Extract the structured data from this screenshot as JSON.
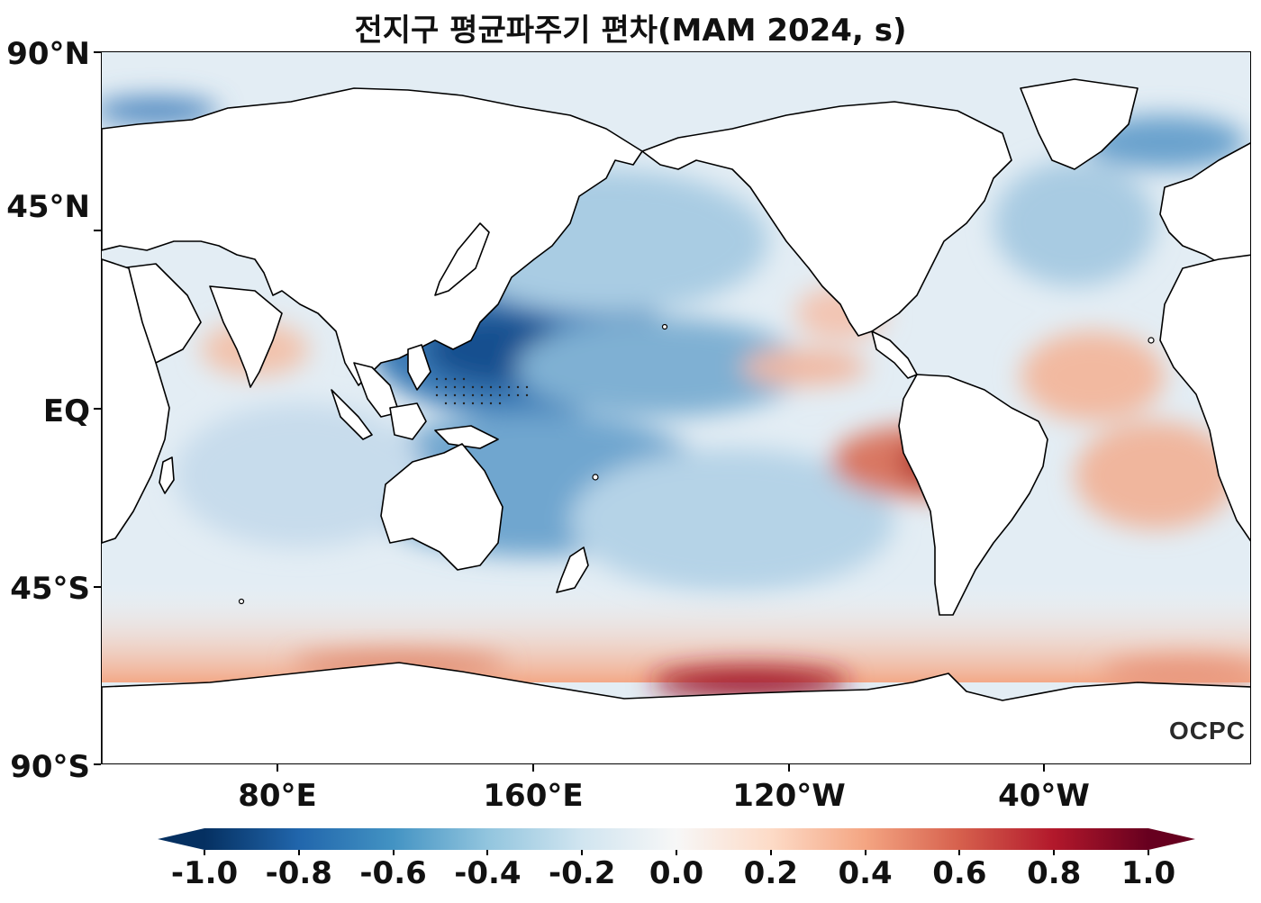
{
  "title": "전지구 평균파주기 편차(MAM 2024, s)",
  "y_axis_labels": [
    "90°N",
    "45°N",
    "EQ",
    "45°S",
    "90°S"
  ],
  "x_axis_labels": [
    "80°E",
    "160°E",
    "120°W",
    "40°W"
  ],
  "colorbar": {
    "colormap": "RdBu_r",
    "min": -1.0,
    "max": 1.0,
    "extend": "both",
    "tick_labels": [
      "-1.0",
      "-0.8",
      "-0.6",
      "-0.4",
      "-0.2",
      "0.0",
      "0.2",
      "0.4",
      "0.6",
      "0.8",
      "1.0"
    ]
  },
  "logo_text": "OCPC",
  "colors": {
    "strong_negative": "#053061",
    "negative": "#2166ac",
    "light_negative": "#92c5de",
    "neutral": "#f7f7f7",
    "light_positive": "#f4a582",
    "positive": "#d6604d",
    "strong_positive": "#67001f",
    "coastline": "#000000"
  }
}
